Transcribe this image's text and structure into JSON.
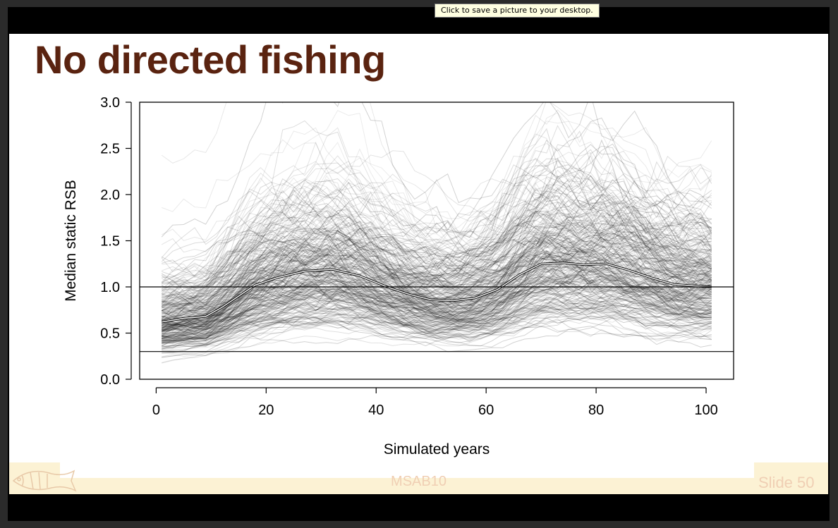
{
  "tooltip": "Click to save a picture to your desktop.",
  "slide": {
    "title": "No directed fishing",
    "footer_center": "MSAB10",
    "footer_slide": "Slide 50",
    "logo_icon": "fish-logo-icon"
  },
  "colors": {
    "title": "#5a2310",
    "footer_band": "#fcf2d4",
    "footer_text": "#f0cfb4"
  },
  "chart_data": {
    "type": "line",
    "title": "",
    "xlabel": "Simulated years",
    "ylabel": "Median static RSB",
    "xlim": [
      -3,
      105
    ],
    "ylim": [
      0,
      3
    ],
    "x_ticks": [
      "0",
      "20",
      "40",
      "60",
      "80",
      "100"
    ],
    "y_ticks": [
      "0.0",
      "0.5",
      "1.0",
      "1.5",
      "2.0",
      "2.5",
      "3.0"
    ],
    "reference_lines": [
      1.0,
      0.3
    ],
    "grid": false,
    "legend": "none",
    "trajectory_count": 1000,
    "series": [
      {
        "x": [
          1,
          5,
          9,
          12,
          15,
          18,
          22,
          27,
          32,
          37,
          42,
          46,
          50,
          54,
          58,
          62,
          66,
          70,
          74,
          78,
          82,
          86,
          90,
          94,
          98,
          101
        ],
        "y": [
          0.62,
          0.66,
          0.68,
          0.78,
          0.9,
          1.02,
          1.1,
          1.17,
          1.19,
          1.12,
          1.0,
          0.92,
          0.86,
          0.85,
          0.88,
          0.97,
          1.13,
          1.25,
          1.26,
          1.24,
          1.25,
          1.18,
          1.1,
          1.03,
          1.01,
          1.0
        ]
      }
    ]
  }
}
